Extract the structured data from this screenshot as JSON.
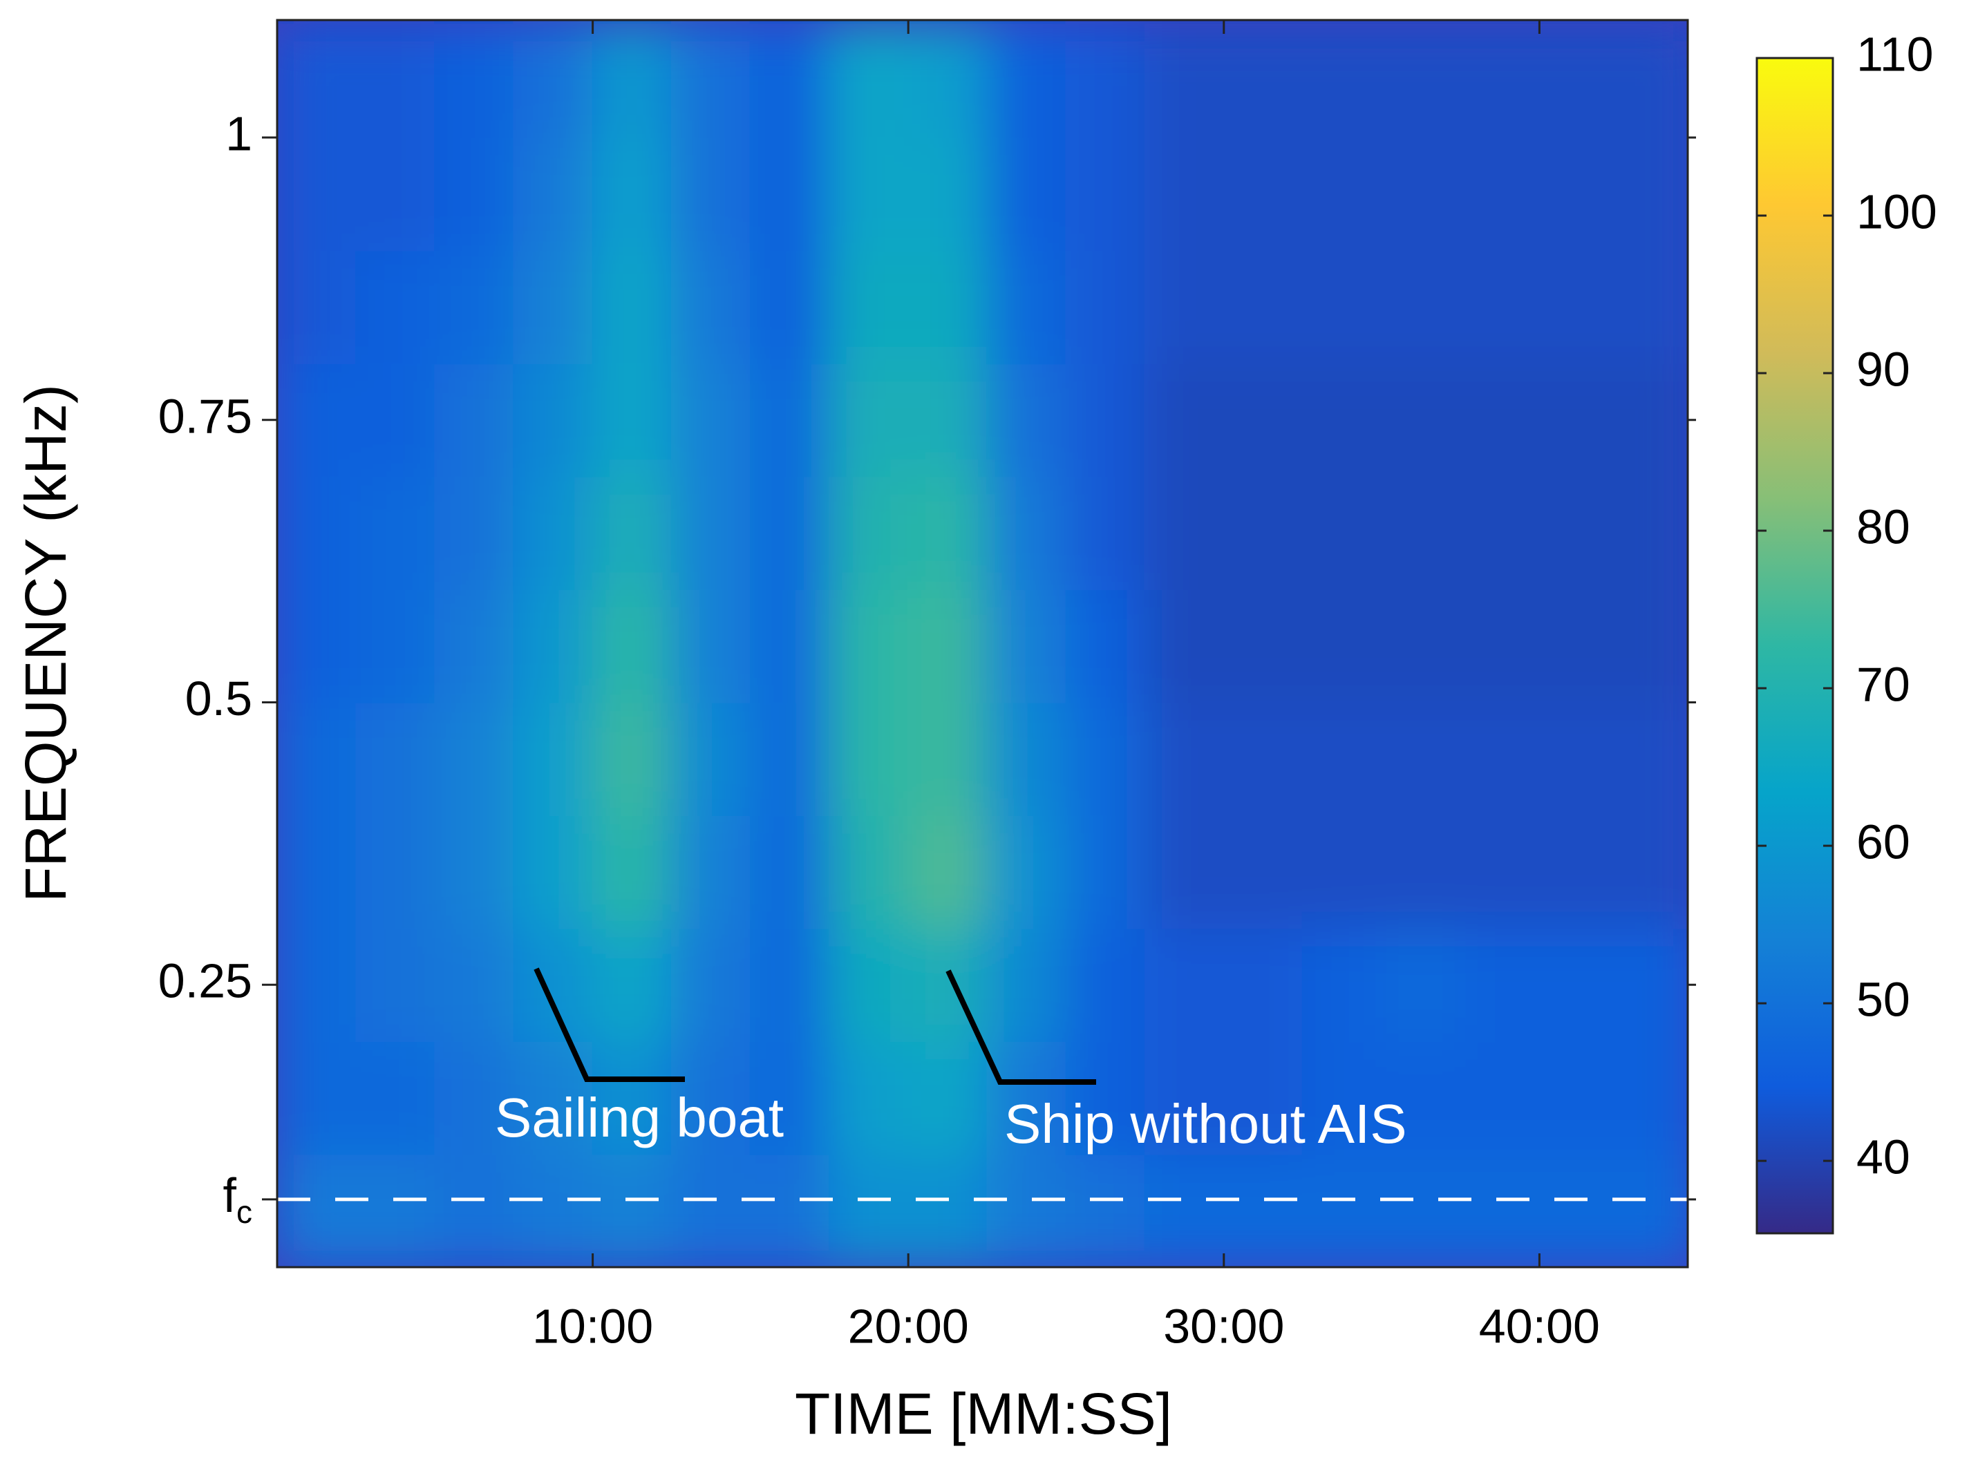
{
  "chart_data": {
    "type": "heatmap",
    "xlabel": "TIME [MM:SS]",
    "ylabel": "FREQUENCY (kHz)",
    "xlim": [
      0,
      44.7
    ],
    "ylim": [
      0,
      1.104
    ],
    "xticks": [
      {
        "value": 10,
        "label": "10:00"
      },
      {
        "value": 20,
        "label": "20:00"
      },
      {
        "value": 30,
        "label": "30:00"
      },
      {
        "value": 40,
        "label": "40:00"
      }
    ],
    "yticks": [
      {
        "value": 0.06,
        "label": "fc"
      },
      0.25,
      0.5,
      0.75,
      1
    ],
    "x": [
      1.25,
      3.75,
      6.25,
      8.75,
      11.25,
      13.75,
      16.25,
      18.75,
      21.25,
      23.75,
      26.25,
      28.75,
      31.25,
      33.75,
      36.25,
      38.75,
      41.25,
      43.75
    ],
    "y": [
      0.05,
      0.15,
      0.25,
      0.35,
      0.45,
      0.55,
      0.65,
      0.75,
      0.85,
      0.95,
      1.05
    ],
    "z": [
      [
        52,
        52,
        50,
        52,
        54,
        50,
        50,
        58,
        58,
        52,
        50,
        48,
        48,
        48,
        48,
        48,
        48,
        48
      ],
      [
        48,
        48,
        50,
        54,
        58,
        50,
        48,
        62,
        64,
        52,
        46,
        44,
        44,
        46,
        46,
        46,
        46,
        46
      ],
      [
        48,
        50,
        52,
        58,
        64,
        52,
        48,
        66,
        68,
        56,
        46,
        44,
        44,
        46,
        48,
        46,
        46,
        46
      ],
      [
        48,
        50,
        54,
        62,
        72,
        54,
        48,
        70,
        76,
        58,
        48,
        42,
        42,
        42,
        42,
        42,
        42,
        42
      ],
      [
        48,
        50,
        54,
        62,
        74,
        56,
        48,
        72,
        74,
        56,
        48,
        42,
        42,
        42,
        42,
        42,
        42,
        42
      ],
      [
        46,
        48,
        52,
        60,
        72,
        54,
        48,
        72,
        74,
        54,
        46,
        41,
        41,
        41,
        41,
        41,
        41,
        41
      ],
      [
        46,
        48,
        50,
        58,
        68,
        54,
        48,
        70,
        72,
        52,
        44,
        41,
        41,
        41,
        41,
        41,
        41,
        41
      ],
      [
        46,
        46,
        50,
        56,
        64,
        54,
        48,
        68,
        68,
        50,
        44,
        41,
        41,
        41,
        41,
        41,
        41,
        41
      ],
      [
        44,
        46,
        48,
        54,
        64,
        52,
        46,
        66,
        66,
        48,
        44,
        42,
        42,
        42,
        42,
        42,
        42,
        42
      ],
      [
        44,
        44,
        46,
        52,
        62,
        50,
        46,
        64,
        64,
        46,
        44,
        42,
        42,
        42,
        42,
        42,
        42,
        42
      ],
      [
        44,
        44,
        46,
        50,
        60,
        50,
        46,
        64,
        62,
        46,
        44,
        42,
        42,
        42,
        42,
        42,
        42,
        42
      ]
    ],
    "colorscale": [
      "#352a87",
      "#0f5cdd",
      "#1481d6",
      "#06a4ca",
      "#2eb7a4",
      "#87bf77",
      "#d1bb59",
      "#fec832",
      "#f9fb0e"
    ],
    "clim": [
      35.4,
      110
    ],
    "cticks": [
      40,
      50,
      60,
      70,
      80,
      90,
      100,
      110
    ],
    "annotations": [
      {
        "text": "Sailing boat"
      },
      {
        "text": "Ship without AIS"
      }
    ]
  }
}
